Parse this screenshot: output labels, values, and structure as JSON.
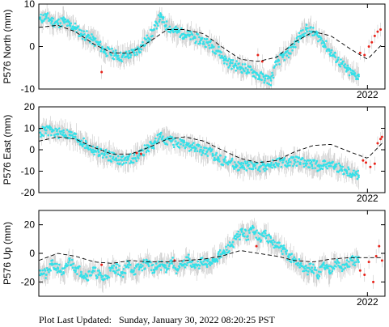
{
  "footer": {
    "label": "Plot Last Updated:",
    "value": "Sunday, January 30, 2022 08:20:25 PST"
  },
  "colors": {
    "daily": "#33e0e8",
    "rapid": "#e8231a",
    "errorbar": "#c8c8c8",
    "model": "#000000"
  },
  "chart_data": [
    {
      "type": "scatter",
      "name": "north",
      "ylabel": "P576 North (mm)",
      "ylim": [
        -10,
        10
      ],
      "yticks": [
        10,
        0,
        -10
      ],
      "x_tick_label": "2022",
      "x_tick_value": 2022.0,
      "xlim": [
        2019.75,
        2022.12
      ],
      "model_curve": {
        "x": [
          2019.75,
          2019.88,
          2020.0,
          2020.13,
          2020.25,
          2020.38,
          2020.5,
          2020.63,
          2020.75,
          2020.88,
          2021.0,
          2021.13,
          2021.25,
          2021.38,
          2021.5,
          2021.63,
          2021.75,
          2021.88,
          2022.0,
          2022.1
        ],
        "y": [
          4.5,
          5.0,
          3.5,
          0.5,
          -1.5,
          -1.5,
          1.0,
          4.0,
          4.0,
          3.0,
          0.0,
          -3.0,
          -3.5,
          -2.5,
          1.0,
          3.5,
          2.5,
          -0.5,
          -3.0,
          0.5
        ]
      },
      "daily_points": {
        "x": [
          2019.76,
          2019.8,
          2019.84,
          2019.88,
          2019.92,
          2019.96,
          2020.0,
          2020.04,
          2020.08,
          2020.12,
          2020.16,
          2020.2,
          2020.24,
          2020.28,
          2020.32,
          2020.36,
          2020.4,
          2020.44,
          2020.5,
          2020.54,
          2020.58,
          2020.62,
          2020.66,
          2020.7,
          2020.74,
          2020.78,
          2020.82,
          2020.86,
          2020.9,
          2020.94,
          2020.98,
          2021.02,
          2021.06,
          2021.1,
          2021.14,
          2021.18,
          2021.22,
          2021.26,
          2021.3,
          2021.34,
          2021.38,
          2021.42,
          2021.46,
          2021.5,
          2021.54,
          2021.58,
          2021.62,
          2021.66,
          2021.7,
          2021.74,
          2021.78,
          2021.82,
          2021.86,
          2021.9,
          2021.94
        ],
        "y": [
          6.5,
          7.0,
          6.0,
          5.5,
          6.0,
          5.0,
          4.5,
          3.0,
          2.5,
          1.5,
          0.5,
          -1.0,
          -1.5,
          -2.0,
          -2.5,
          -2.0,
          -1.5,
          -0.5,
          2.0,
          4.0,
          7.0,
          5.0,
          4.0,
          3.5,
          3.0,
          2.5,
          2.0,
          1.5,
          1.0,
          0.0,
          -1.0,
          -3.0,
          -4.0,
          -4.5,
          -5.0,
          -5.5,
          -6.0,
          -7.0,
          -7.5,
          -8.0,
          -3.5,
          -2.5,
          -1.5,
          0.5,
          2.5,
          4.0,
          3.5,
          2.5,
          1.0,
          -1.0,
          -2.5,
          -4.0,
          -5.5,
          -6.5,
          -7.0
        ]
      },
      "rapid_points": {
        "x": [
          2020.18,
          2021.25,
          2021.28,
          2021.95,
          2021.98,
          2022.01,
          2022.03,
          2022.05,
          2022.07,
          2022.09
        ],
        "y": [
          -6.0,
          -2.0,
          -3.5,
          -1.5,
          -2.0,
          0.0,
          1.0,
          2.5,
          3.5,
          4.0
        ]
      }
    },
    {
      "type": "scatter",
      "name": "east",
      "ylabel": "P576 East (mm)",
      "ylim": [
        -20,
        20
      ],
      "yticks": [
        20,
        10,
        0,
        -10,
        -20
      ],
      "x_tick_label": "2022",
      "x_tick_value": 2022.0,
      "xlim": [
        2019.75,
        2022.12
      ],
      "model_curve": {
        "x": [
          2019.75,
          2019.88,
          2020.0,
          2020.13,
          2020.25,
          2020.38,
          2020.5,
          2020.63,
          2020.75,
          2020.88,
          2021.0,
          2021.13,
          2021.25,
          2021.38,
          2021.5,
          2021.63,
          2021.75,
          2021.88,
          2022.0,
          2022.1
        ],
        "y": [
          4.0,
          6.0,
          5.0,
          1.0,
          -2.0,
          -2.0,
          1.0,
          5.0,
          6.0,
          4.0,
          0.0,
          -4.0,
          -6.0,
          -5.0,
          -1.0,
          2.0,
          2.5,
          -1.0,
          -4.0,
          3.0
        ]
      },
      "daily_points": {
        "x": [
          2019.76,
          2019.8,
          2019.84,
          2019.88,
          2019.92,
          2019.96,
          2020.0,
          2020.04,
          2020.08,
          2020.12,
          2020.16,
          2020.2,
          2020.24,
          2020.28,
          2020.32,
          2020.36,
          2020.4,
          2020.44,
          2020.5,
          2020.54,
          2020.58,
          2020.62,
          2020.66,
          2020.7,
          2020.74,
          2020.78,
          2020.82,
          2020.86,
          2020.9,
          2020.94,
          2020.98,
          2021.02,
          2021.06,
          2021.1,
          2021.14,
          2021.18,
          2021.22,
          2021.26,
          2021.3,
          2021.34,
          2021.38,
          2021.42,
          2021.46,
          2021.5,
          2021.54,
          2021.58,
          2021.62,
          2021.66,
          2021.7,
          2021.74,
          2021.78,
          2021.82,
          2021.86,
          2021.9,
          2021.94
        ],
        "y": [
          8.0,
          9.0,
          8.5,
          7.5,
          8.0,
          7.0,
          6.0,
          4.0,
          2.0,
          0.0,
          -1.0,
          -2.0,
          -3.0,
          -4.0,
          -5.0,
          -4.5,
          -4.0,
          -2.0,
          1.0,
          3.0,
          6.0,
          5.0,
          4.0,
          3.0,
          2.0,
          1.5,
          1.0,
          0.0,
          -1.0,
          -2.0,
          -4.0,
          -5.0,
          -6.0,
          -7.0,
          -8.0,
          -7.5,
          -7.0,
          -8.0,
          -7.5,
          -7.0,
          -6.5,
          -6.0,
          -6.0,
          -5.0,
          -6.0,
          -6.5,
          -7.0,
          -7.5,
          -7.0,
          -6.0,
          -8.0,
          -9.0,
          -10.0,
          -11.0,
          -12.0
        ]
      },
      "rapid_points": {
        "x": [
          2020.42,
          2020.45,
          2021.97,
          2021.99,
          2022.02,
          2022.05,
          2022.07,
          2022.09,
          2022.1
        ],
        "y": [
          -1.5,
          -2.0,
          -5.0,
          -6.0,
          -8.0,
          -6.5,
          3.0,
          5.0,
          6.0
        ]
      }
    },
    {
      "type": "scatter",
      "name": "up",
      "ylabel": "P576 Up (mm)",
      "ylim": [
        -30,
        30
      ],
      "yticks": [
        20,
        0,
        -20
      ],
      "x_tick_label": "2022",
      "x_tick_value": 2022.0,
      "xlim": [
        2019.75,
        2022.12
      ],
      "model_curve": {
        "x": [
          2019.75,
          2019.88,
          2020.0,
          2020.13,
          2020.25,
          2020.38,
          2020.5,
          2020.63,
          2020.75,
          2020.88,
          2021.0,
          2021.13,
          2021.25,
          2021.38,
          2021.5,
          2021.63,
          2021.75,
          2021.88,
          2022.0,
          2022.1
        ],
        "y": [
          -5.0,
          0.0,
          -2.0,
          -6.0,
          -7.0,
          -5.0,
          -6.0,
          -6.0,
          -5.0,
          -4.0,
          -2.0,
          2.0,
          0.0,
          -2.0,
          -5.0,
          -6.0,
          -4.0,
          -3.0,
          -3.0,
          -3.0
        ]
      },
      "daily_points": {
        "x": [
          2019.76,
          2019.8,
          2019.84,
          2019.88,
          2019.92,
          2019.96,
          2020.0,
          2020.04,
          2020.08,
          2020.12,
          2020.16,
          2020.2,
          2020.24,
          2020.28,
          2020.32,
          2020.36,
          2020.4,
          2020.44,
          2020.5,
          2020.54,
          2020.58,
          2020.62,
          2020.66,
          2020.7,
          2020.74,
          2020.78,
          2020.82,
          2020.86,
          2020.9,
          2020.94,
          2020.98,
          2021.02,
          2021.06,
          2021.1,
          2021.14,
          2021.18,
          2021.22,
          2021.26,
          2021.3,
          2021.34,
          2021.38,
          2021.42,
          2021.46,
          2021.5,
          2021.54,
          2021.58,
          2021.62,
          2021.66,
          2021.7,
          2021.74,
          2021.78,
          2021.82,
          2021.86,
          2021.9,
          2021.94
        ],
        "y": [
          -12.0,
          -15.0,
          -8.0,
          -10.0,
          -14.0,
          -5.0,
          -10.0,
          -13.0,
          -16.0,
          -12.0,
          -15.0,
          -18.0,
          -12.0,
          -10.0,
          -14.0,
          -8.0,
          -12.0,
          -10.0,
          -6.0,
          -12.0,
          -8.0,
          -10.0,
          -5.0,
          -12.0,
          -8.0,
          -4.0,
          -10.0,
          -6.0,
          -8.0,
          -5.0,
          -2.0,
          0.0,
          5.0,
          10.0,
          15.0,
          12.0,
          18.0,
          10.0,
          14.0,
          8.0,
          5.0,
          3.0,
          -2.0,
          -5.0,
          -8.0,
          -12.0,
          -10.0,
          -15.0,
          -8.0,
          -12.0,
          -6.0,
          -10.0,
          -8.0,
          -5.0,
          -6.0
        ]
      },
      "rapid_points": {
        "x": [
          2020.18,
          2020.68,
          2021.24,
          2021.95,
          2021.98,
          2022.01,
          2022.04,
          2022.06,
          2022.08,
          2022.1
        ],
        "y": [
          -8.0,
          -5.0,
          5.0,
          -12.0,
          -15.0,
          -6.0,
          -20.0,
          -2.0,
          5.0,
          -5.0
        ]
      }
    }
  ]
}
